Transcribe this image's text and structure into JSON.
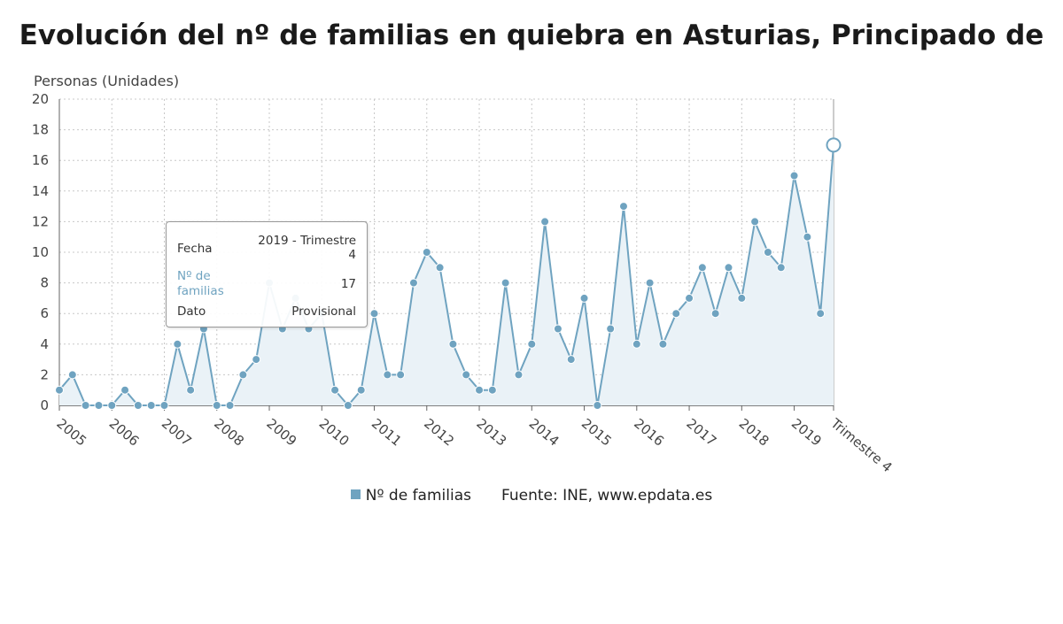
{
  "title": "Evolución del nº de familias en quiebra en Asturias, Principado de",
  "legend": {
    "series_label": "Nº de familias",
    "source": "Fuente: INE, www.epdata.es"
  },
  "tooltip": {
    "fecha_label": "Fecha",
    "fecha_value_1": "2019 - Trimestre",
    "fecha_value_2": "4",
    "series_label_1": "Nº de",
    "series_label_2": "familias",
    "series_value": "17",
    "dato_label": "Dato",
    "dato_value": "Provisional"
  },
  "colors": {
    "line": "#6fa3c0",
    "area": "#eaf2f7",
    "marker": "#6fa3c0"
  },
  "chart_data": {
    "type": "area",
    "ylabel": "Personas (Unidades)",
    "ylim": [
      0,
      20
    ],
    "yticks": [
      0,
      2,
      4,
      6,
      8,
      10,
      12,
      14,
      16,
      18,
      20
    ],
    "x_tick_labels": [
      "2005",
      "2006",
      "2007",
      "2008",
      "2009",
      "2010",
      "2011",
      "2012",
      "2013",
      "2014",
      "2015",
      "2016",
      "2017",
      "2018",
      "2019",
      "Trimestre 4"
    ],
    "grid": true,
    "series": [
      {
        "name": "Nº de familias",
        "values": [
          1,
          2,
          0,
          0,
          0,
          1,
          0,
          0,
          0,
          4,
          1,
          5,
          0,
          0,
          2,
          3,
          8,
          5,
          7,
          5,
          6,
          1,
          0,
          1,
          6,
          2,
          2,
          8,
          10,
          9,
          4,
          2,
          1,
          1,
          8,
          2,
          4,
          12,
          5,
          3,
          7,
          0,
          5,
          13,
          4,
          8,
          4,
          6,
          7,
          9,
          6,
          9,
          7,
          12,
          10,
          9,
          15,
          11,
          6,
          17
        ]
      }
    ]
  }
}
